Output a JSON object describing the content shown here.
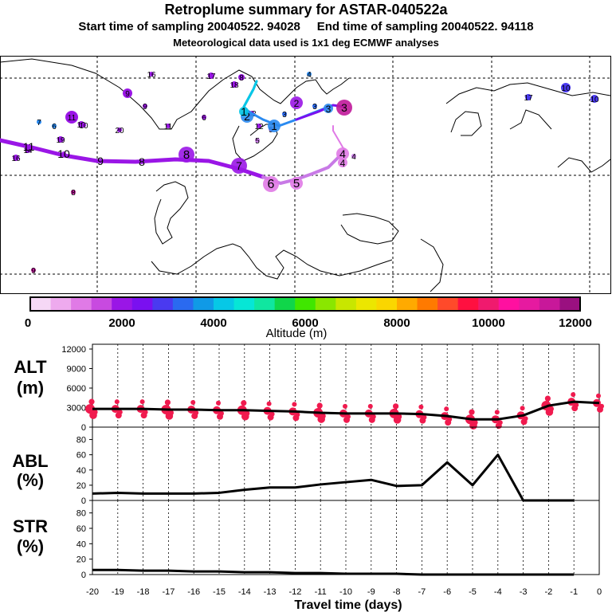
{
  "header": {
    "title": "Retroplume summary for ASTAR-040522a",
    "start_label": "Start time of sampling 20040522. 94028",
    "end_label": "End time of sampling 20040522. 94118",
    "met_line": "Meteorological data used is 1x1 deg ECMWF analyses"
  },
  "colorbar": {
    "label": "Altitude (m)",
    "ticks": [
      "0",
      "2000",
      "4000",
      "6000",
      "8000",
      "10000",
      "12000"
    ],
    "colors": [
      "#f6d8f6",
      "#eeaaee",
      "#e07ae6",
      "#c84ae0",
      "#9a16e6",
      "#7a10f0",
      "#4a3af0",
      "#2a6af0",
      "#109ae6",
      "#06c8e6",
      "#06e6d6",
      "#10e6a0",
      "#10d64a",
      "#40e600",
      "#8ae600",
      "#c8e600",
      "#ece600",
      "#fad600",
      "#ffaa00",
      "#ff7a00",
      "#ff4a2a",
      "#ff1040",
      "#f01a6e",
      "#ff10a0",
      "#e61aa0",
      "#c8189a",
      "#9a1080"
    ]
  },
  "map": {
    "grid": "dashed lat/lon grid",
    "path_labels": [
      "11",
      "10",
      "9",
      "8",
      "8",
      "7",
      "6",
      "5",
      "4",
      "4",
      "3",
      "2",
      "1",
      "1",
      "2",
      "3"
    ],
    "scatter_labels": [
      "13",
      "13",
      "11",
      "16",
      "17",
      "15",
      "12",
      "12",
      "11",
      "11",
      "10",
      "10",
      "9",
      "9",
      "7",
      "6",
      "6",
      "5",
      "4",
      "8",
      "8",
      "14",
      "16",
      "18",
      "20",
      "19",
      "10",
      "10",
      "9",
      "3",
      "3",
      "17",
      "4",
      "5"
    ]
  },
  "chart_data": [
    {
      "type": "line",
      "title": "ALT (m)",
      "xlabel": "Travel time (days)",
      "ylabel": "ALT (m)",
      "x": [
        -20,
        -19,
        -18,
        -17,
        -16,
        -15,
        -14,
        -13,
        -12,
        -11,
        -10,
        -9,
        -8,
        -7,
        -6,
        -5,
        -4,
        -3,
        -2,
        -1,
        0
      ],
      "values": [
        2800,
        2800,
        2800,
        2700,
        2700,
        2600,
        2600,
        2500,
        2400,
        2200,
        2100,
        2100,
        2100,
        2000,
        1700,
        1200,
        1200,
        1800,
        3300,
        3900,
        3700
      ],
      "ylim": [
        0,
        12000
      ],
      "yticks": [
        "0",
        "3000",
        "6000",
        "9000",
        "12000"
      ],
      "markers": "altitude-coloured dots (red/magenta, 10000-12000 m colour band)"
    },
    {
      "type": "line",
      "title": "ABL (%)",
      "ylabel": "ABL (%)",
      "x": [
        -20,
        -19,
        -18,
        -17,
        -16,
        -15,
        -14,
        -13,
        -12,
        -11,
        -10,
        -9,
        -8,
        -7,
        -6,
        -5,
        -4,
        -3,
        -2,
        -1
      ],
      "values": [
        9,
        10,
        9,
        9,
        9,
        10,
        14,
        17,
        17,
        21,
        24,
        27,
        19,
        20,
        50,
        20,
        60,
        0,
        0,
        0
      ],
      "ylim": [
        0,
        90
      ],
      "yticks": [
        "0",
        "20",
        "40",
        "60",
        "80"
      ]
    },
    {
      "type": "line",
      "title": "STR (%)",
      "ylabel": "STR (%)",
      "x": [
        -20,
        -19,
        -18,
        -17,
        -16,
        -15,
        -14,
        -13,
        -12,
        -11,
        -10,
        -9,
        -8,
        -7,
        -6,
        -5,
        -4,
        -3,
        -2,
        -1
      ],
      "values": [
        6,
        6,
        5,
        5,
        4,
        4,
        3,
        3,
        2,
        2,
        1,
        1,
        1,
        0,
        0,
        0,
        0,
        0,
        0,
        0
      ],
      "ylim": [
        0,
        90
      ],
      "yticks": [
        "0",
        "20",
        "40",
        "60",
        "80"
      ]
    }
  ],
  "xaxis": {
    "ticks": [
      "-20",
      "-19",
      "-18",
      "-17",
      "-16",
      "-15",
      "-14",
      "-13",
      "-12",
      "-11",
      "-10",
      "-9",
      "-8",
      "-7",
      "-6",
      "-5",
      "-4",
      "-3",
      "-2",
      "-1",
      "0"
    ],
    "label": "Travel time (days)"
  },
  "panel_labels": {
    "alt": [
      "ALT",
      "(m)"
    ],
    "abl": [
      "ABL",
      "(%)"
    ],
    "str": [
      "STR",
      "(%)"
    ]
  }
}
